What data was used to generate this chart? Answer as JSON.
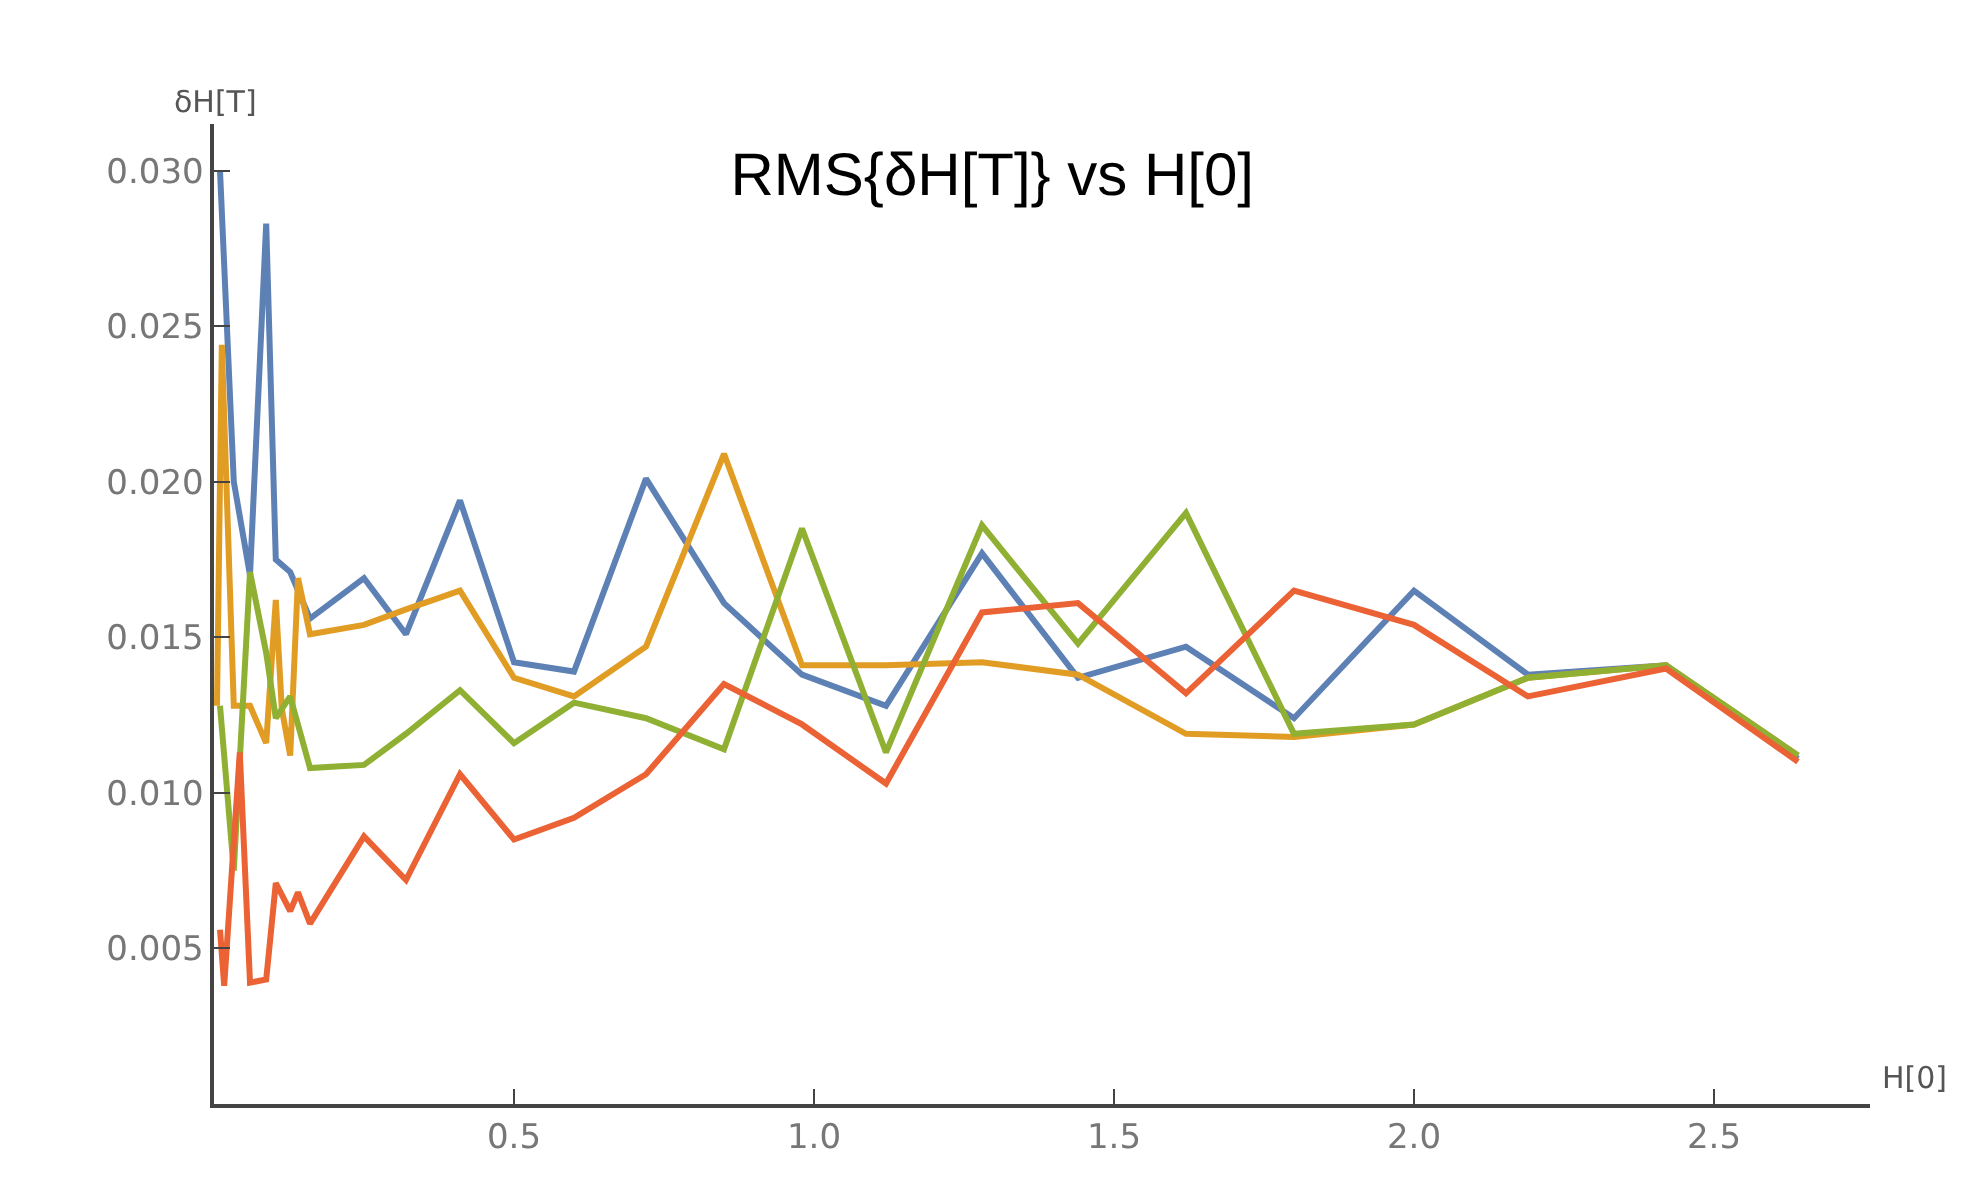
{
  "chart_data": {
    "type": "line",
    "title": "RMS{δH[T]} vs H[0]",
    "xlabel": "H[0]",
    "ylabel": "δH[T]",
    "xlim": [
      0,
      2.76
    ],
    "ylim": [
      0,
      0.0315
    ],
    "xticks": [
      0.5,
      {
        "value": 1,
        "label": "1.0"
      },
      1.5,
      {
        "value": 2,
        "label": "2.0"
      },
      2.5
    ],
    "yticks": [
      0.005,
      {
        "value": 0.01,
        "label": "0.010"
      },
      0.015,
      {
        "value": 0.02,
        "label": "0.020"
      },
      0.025,
      {
        "value": 0.03,
        "label": "0.030"
      }
    ],
    "marker": "none",
    "line_style": "solid",
    "series": [
      {
        "color": "#5e81b5",
        "x": [
          0.01,
          0.033,
          0.06,
          0.087,
          0.103,
          0.127,
          0.16,
          0.25,
          0.32,
          0.41,
          0.5,
          0.6,
          0.72,
          0.85,
          0.98,
          1.12,
          1.28,
          1.44,
          1.62,
          1.8,
          2.0,
          2.19,
          2.42,
          2.64
        ],
        "values": [
          0.03,
          0.02,
          0.017,
          0.0283,
          0.0175,
          0.0171,
          0.0156,
          0.0169,
          0.0151,
          0.0194,
          0.0142,
          0.0139,
          0.0201,
          0.0161,
          0.0138,
          0.0128,
          0.0177,
          0.0137,
          0.0147,
          0.0124,
          0.0165,
          0.0138,
          0.0141,
          0.0111
        ]
      },
      {
        "color": "#e19c24",
        "x": [
          0.005,
          0.013,
          0.033,
          0.06,
          0.087,
          0.103,
          0.113,
          0.127,
          0.14,
          0.16,
          0.25,
          0.32,
          0.41,
          0.5,
          0.6,
          0.72,
          0.85,
          0.98,
          1.12,
          1.28,
          1.44,
          1.62,
          1.8,
          2.0,
          2.19,
          2.42,
          2.64
        ],
        "values": [
          0.0128,
          0.0244,
          0.0128,
          0.0128,
          0.0116,
          0.0162,
          0.0127,
          0.0112,
          0.0169,
          0.0151,
          0.0154,
          0.0159,
          0.0165,
          0.0137,
          0.0131,
          0.0147,
          0.0209,
          0.0141,
          0.0141,
          0.0142,
          0.0138,
          0.0119,
          0.0118,
          0.0122,
          0.0137,
          0.0141,
          0.0112
        ]
      },
      {
        "color": "#8fb032",
        "x": [
          0.01,
          0.033,
          0.06,
          0.087,
          0.103,
          0.127,
          0.16,
          0.25,
          0.32,
          0.41,
          0.5,
          0.6,
          0.72,
          0.85,
          0.98,
          1.12,
          1.28,
          1.44,
          1.62,
          1.8,
          2.0,
          2.19,
          2.42,
          2.64
        ],
        "values": [
          0.0128,
          0.0075,
          0.0171,
          0.0145,
          0.0124,
          0.0131,
          0.0108,
          0.0109,
          0.0119,
          0.0133,
          0.0116,
          0.0129,
          0.0124,
          0.0114,
          0.0185,
          0.0113,
          0.0186,
          0.0148,
          0.019,
          0.0119,
          0.0122,
          0.0137,
          0.0141,
          0.0112
        ]
      },
      {
        "color": "#eb6235",
        "x": [
          0.01,
          0.017,
          0.043,
          0.06,
          0.087,
          0.103,
          0.127,
          0.14,
          0.16,
          0.25,
          0.32,
          0.41,
          0.5,
          0.6,
          0.72,
          0.85,
          0.98,
          1.12,
          1.28,
          1.44,
          1.62,
          1.8,
          2.0,
          2.19,
          2.42,
          2.64
        ],
        "values": [
          0.0056,
          0.0038,
          0.0113,
          0.0039,
          0.004,
          0.0071,
          0.0062,
          0.0068,
          0.0058,
          0.0086,
          0.0072,
          0.0106,
          0.0085,
          0.0092,
          0.0106,
          0.0135,
          0.0122,
          0.0103,
          0.0158,
          0.0161,
          0.0132,
          0.0165,
          0.0154,
          0.0131,
          0.014,
          0.011
        ]
      }
    ]
  }
}
